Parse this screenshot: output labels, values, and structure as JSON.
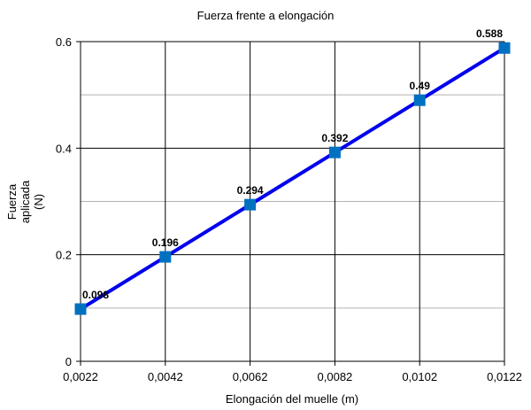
{
  "chart_data": {
    "type": "line",
    "title": "Fuerza frente a elongación",
    "xlabel": "Elongación del muelle (m)",
    "ylabel_lines": [
      "Fuerza",
      "aplicada",
      "(N)"
    ],
    "x": [
      0.0022,
      0.0042,
      0.0062,
      0.0082,
      0.0102,
      0.0122
    ],
    "x_tick_labels": [
      "0,0022",
      "0,0042",
      "0,0062",
      "0,0082",
      "0,0102",
      "0,0122"
    ],
    "y_ticks": [
      0,
      0.2,
      0.4,
      0.6
    ],
    "y_tick_labels": [
      "0",
      "0.2",
      "0.4",
      "0.6"
    ],
    "xlim": [
      0.0022,
      0.0122
    ],
    "ylim": [
      0,
      0.6
    ],
    "series": [
      {
        "values": [
          0.098,
          0.196,
          0.294,
          0.392,
          0.49,
          0.588
        ],
        "data_labels": [
          "0.098",
          "0.196",
          "0.294",
          "0.392",
          "0.49",
          "0.588"
        ],
        "color": "#0000ee",
        "marker": "square",
        "marker_color": "#0070c0"
      }
    ],
    "grid": true,
    "legend": "none"
  }
}
